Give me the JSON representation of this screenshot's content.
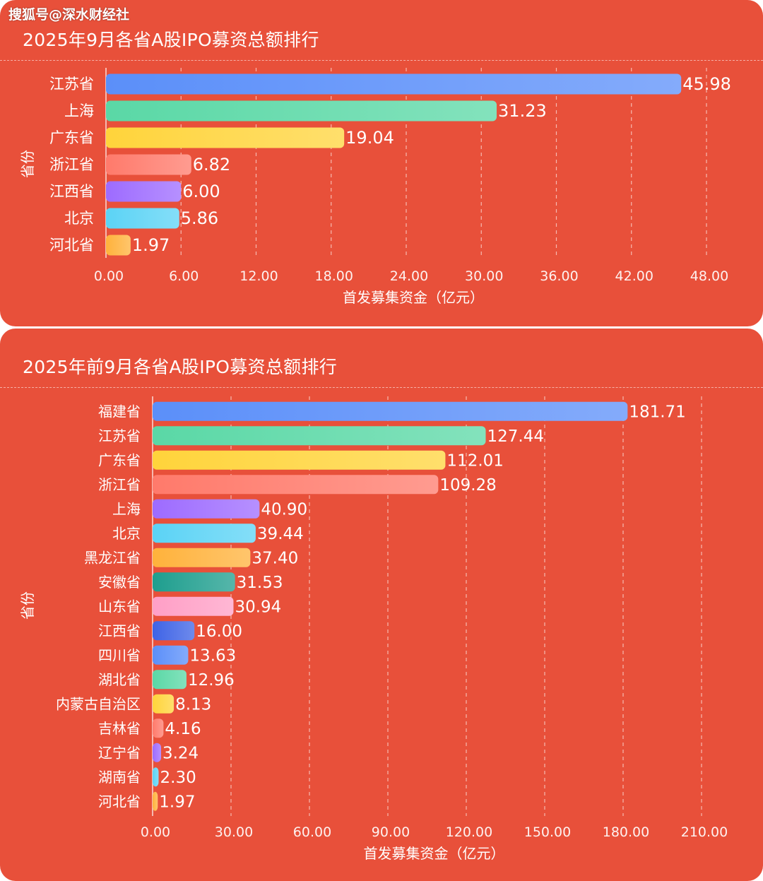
{
  "watermark": "搜狐号@深水财经社",
  "colors": {
    "panel_bg": "#e8503a",
    "palette": [
      "#5b8ff9",
      "#5ad8a6",
      "#ffd43b",
      "#ff7a6b",
      "#9d6bff",
      "#5bd3f5",
      "#ffb23b",
      "#1e9e8e",
      "#ff9fc6",
      "#3e63e6",
      "#5b8ff9",
      "#5ad8a6",
      "#ffd43b",
      "#ff7a6b",
      "#9d6bff",
      "#5bd3f5",
      "#ffb23b"
    ]
  },
  "chart_data": [
    {
      "type": "bar",
      "orientation": "horizontal",
      "title": "2025年9月各省A股IPO募资总额排行",
      "xlabel": "首发募集资金（亿元）",
      "ylabel": "省份",
      "categories": [
        "江苏省",
        "上海",
        "广东省",
        "浙江省",
        "江西省",
        "北京",
        "河北省"
      ],
      "values": [
        45.98,
        31.23,
        19.04,
        6.82,
        6.0,
        5.86,
        1.97
      ],
      "value_labels": [
        "45.98",
        "31.23",
        "19.04",
        "6.82",
        "6.00",
        "5.86",
        "1.97"
      ],
      "xlim": [
        0,
        48
      ],
      "xticks": [
        "0.00",
        "6.00",
        "12.00",
        "18.00",
        "24.00",
        "30.00",
        "36.00",
        "42.00",
        "48.00"
      ],
      "grid": true
    },
    {
      "type": "bar",
      "orientation": "horizontal",
      "title": "2025年前9月各省A股IPO募资总额排行",
      "xlabel": "首发募集资金（亿元）",
      "ylabel": "省份",
      "categories": [
        "福建省",
        "江苏省",
        "广东省",
        "浙江省",
        "上海",
        "北京",
        "黑龙江省",
        "安徽省",
        "山东省",
        "江西省",
        "四川省",
        "湖北省",
        "内蒙古自治区",
        "吉林省",
        "辽宁省",
        "湖南省",
        "河北省"
      ],
      "values": [
        181.71,
        127.44,
        112.01,
        109.28,
        40.9,
        39.44,
        37.4,
        31.53,
        30.94,
        16.0,
        13.63,
        12.96,
        8.13,
        4.16,
        3.24,
        2.3,
        1.97
      ],
      "value_labels": [
        "181.71",
        "127.44",
        "112.01",
        "109.28",
        "40.90",
        "39.44",
        "37.40",
        "31.53",
        "30.94",
        "16.00",
        "13.63",
        "12.96",
        "8.13",
        "4.16",
        "3.24",
        "2.30",
        "1.97"
      ],
      "xlim": [
        0,
        210
      ],
      "xticks": [
        "0.00",
        "30.00",
        "60.00",
        "90.00",
        "120.00",
        "150.00",
        "180.00",
        "210.00"
      ],
      "grid": true
    }
  ]
}
